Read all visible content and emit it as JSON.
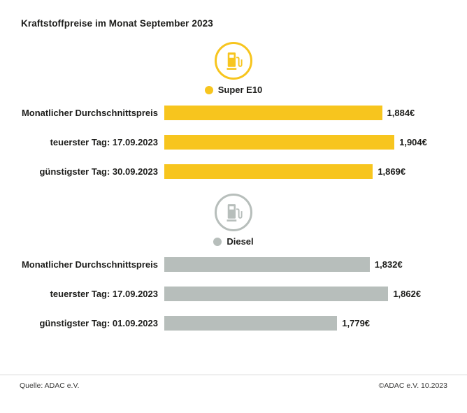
{
  "title": "Kraftstoffpreise im Monat September 2023",
  "chart_data": {
    "type": "bar",
    "orientation": "horizontal",
    "title": "Kraftstoffpreise im Monat September 2023",
    "value_suffix": "€",
    "legend_position": "above-each-group",
    "grid": false,
    "groups": [
      {
        "legend": "Super E10",
        "color": "#F7C51E",
        "icon": "fuel-pump-icon",
        "categories": [
          "Monatlicher Durchschnittspreis",
          "teuerster Tag: 17.09.2023",
          "günstigster Tag: 30.09.2023"
        ],
        "values": [
          1.884,
          1.904,
          1.869
        ],
        "value_labels": [
          "1,884€",
          "1,904€",
          "1,869€"
        ],
        "xlim": [
          1.53,
          1.93
        ]
      },
      {
        "legend": "Diesel",
        "color": "#B7BEBB",
        "icon": "fuel-pump-icon",
        "categories": [
          "Monatlicher Durchschnittspreis",
          "teuerster Tag: 17.09.2023",
          "günstigster Tag: 01.09.2023"
        ],
        "values": [
          1.832,
          1.862,
          1.779
        ],
        "value_labels": [
          "1,832€",
          "1,862€",
          "1,779€"
        ],
        "xlim": [
          1.498,
          1.898
        ]
      }
    ]
  },
  "footer": {
    "source": "Quelle: ADAC e.V.",
    "copyright": "©ADAC e.V. 10.2023"
  }
}
